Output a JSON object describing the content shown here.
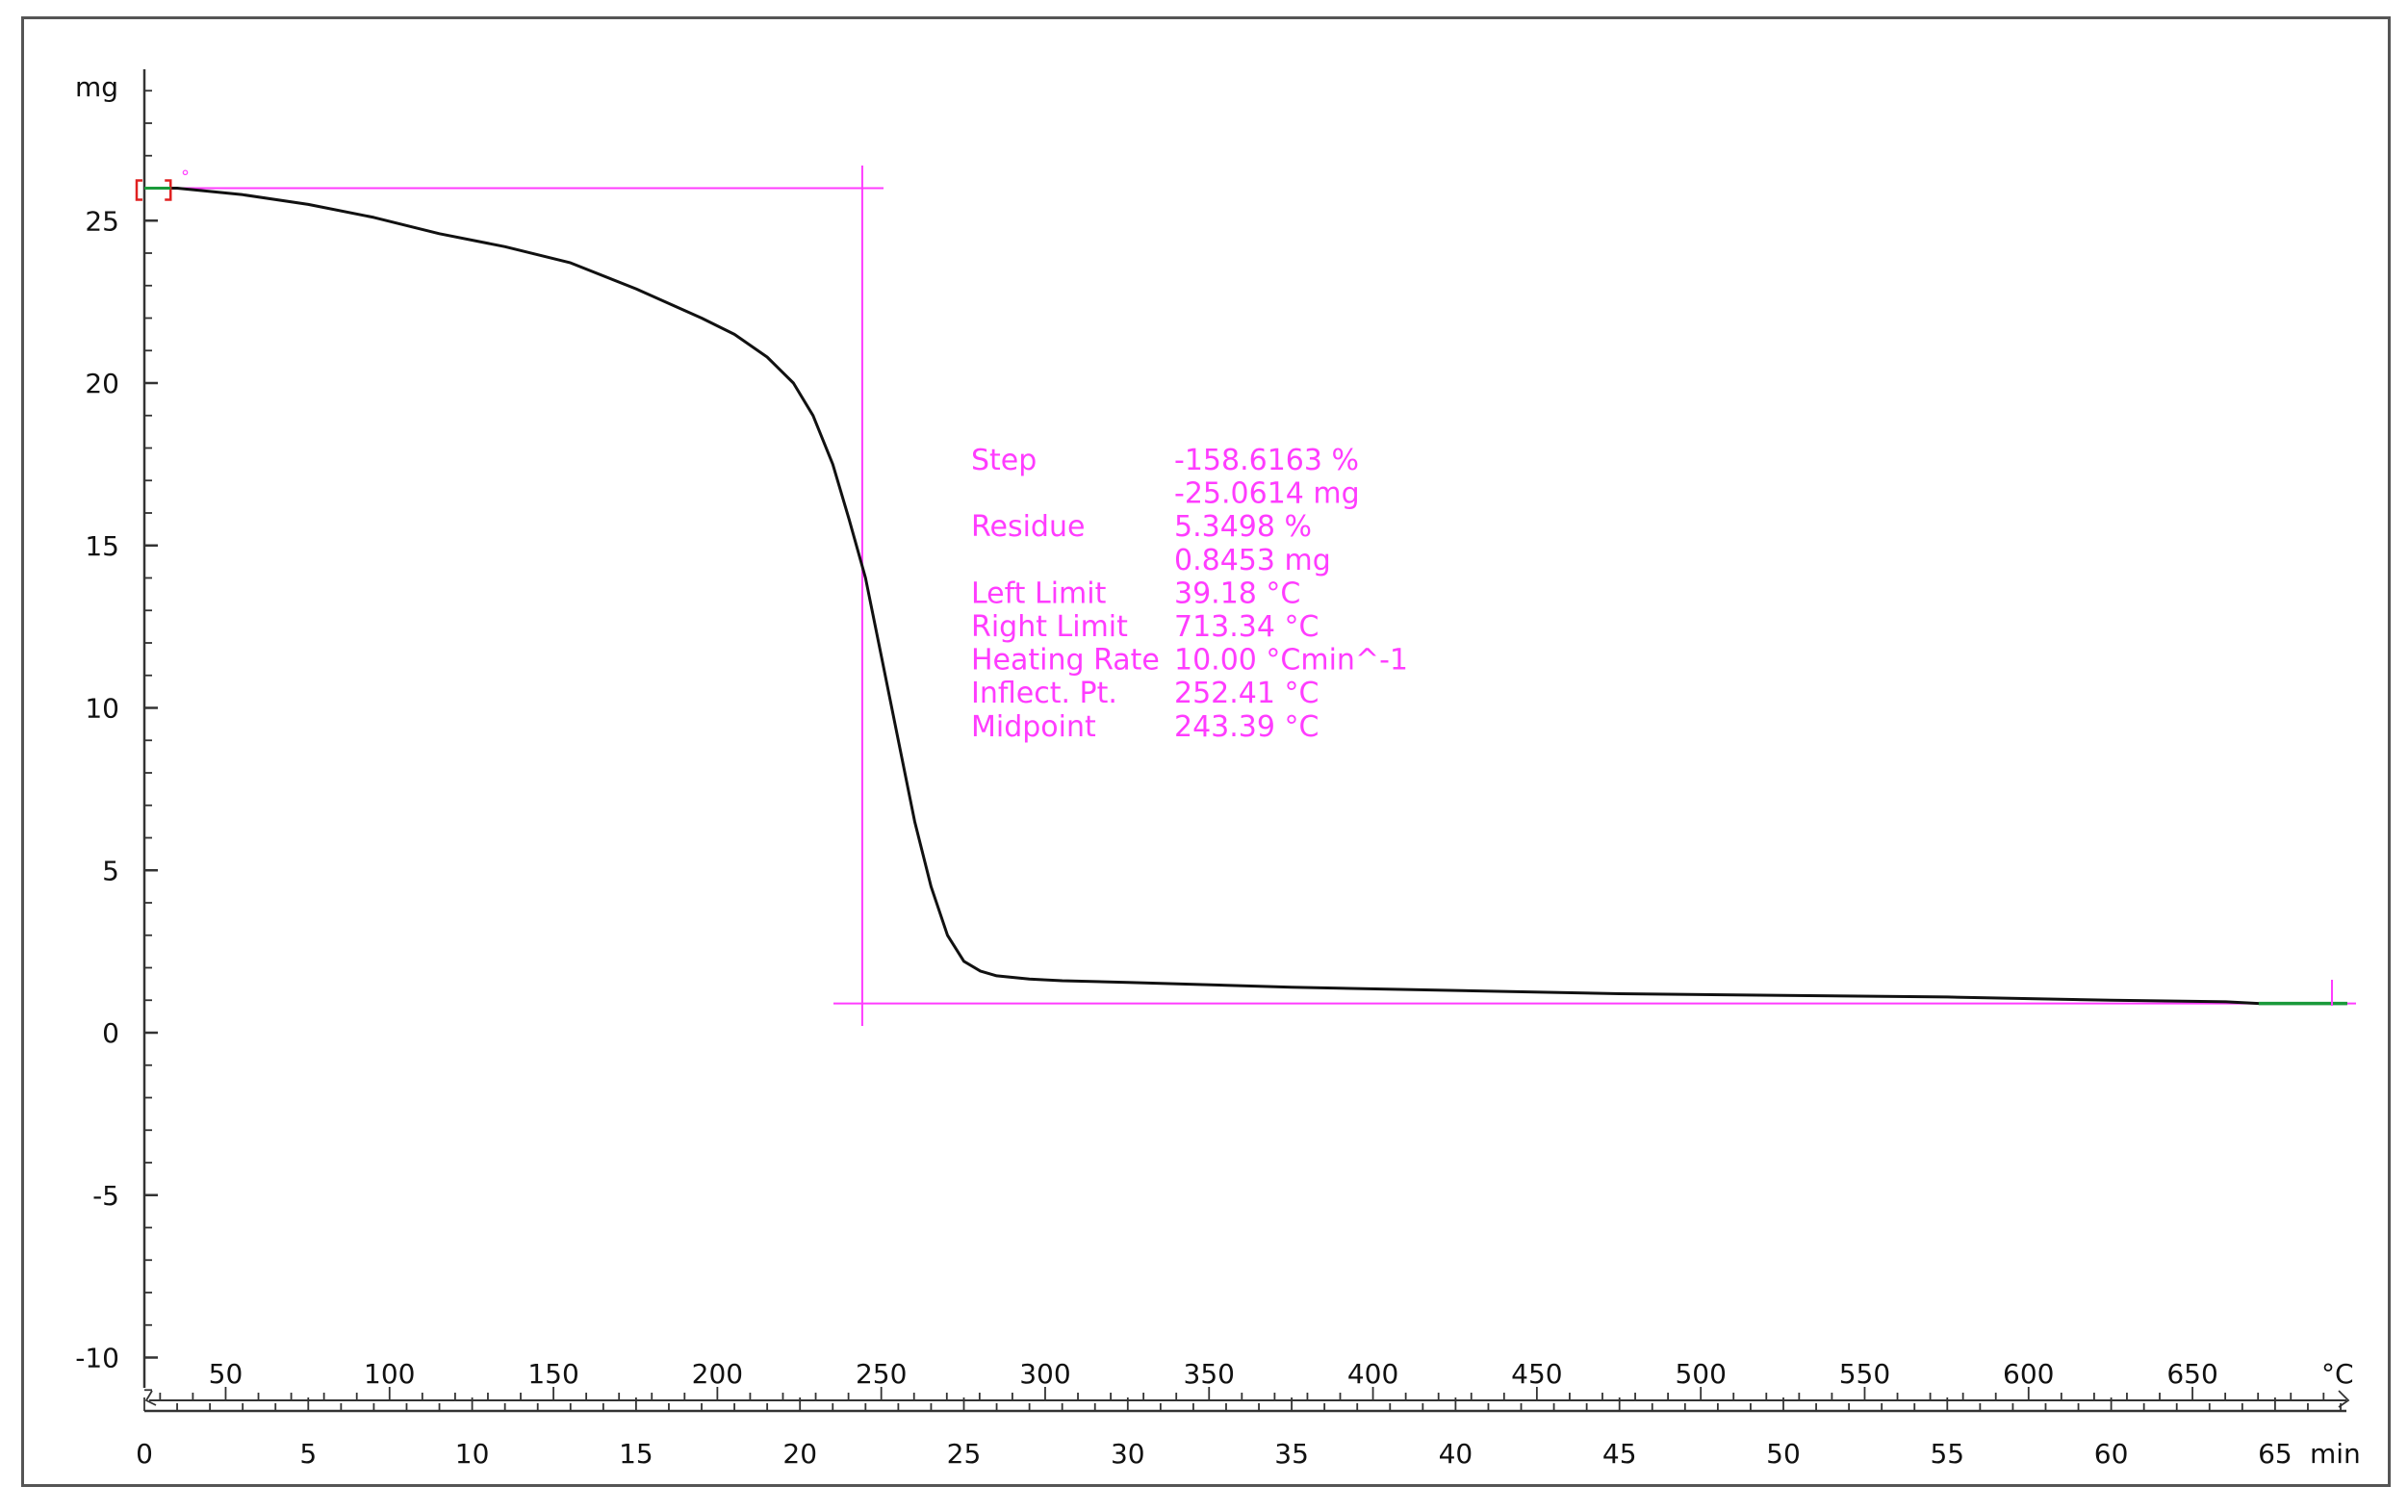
{
  "chart_data": {
    "type": "line",
    "title": "",
    "y_unit": "mg",
    "x_top_unit": "°C",
    "x_bottom_unit": "min",
    "ylim": [
      -11,
      29
    ],
    "x_min_lim": [
      0,
      67.4
    ],
    "y_ticks": [
      25,
      20,
      15,
      10,
      5,
      0,
      -5,
      -10
    ],
    "x_top_ticks": [
      50,
      100,
      150,
      200,
      250,
      300,
      350,
      400,
      450,
      500,
      550,
      600,
      650
    ],
    "x_bottom_ticks": [
      0,
      5,
      10,
      15,
      20,
      25,
      30,
      35,
      40,
      45,
      50,
      55,
      60,
      65
    ],
    "series": [
      {
        "color": "#111111",
        "x": [
          0.3,
          1,
          3,
          5,
          7,
          9,
          11,
          13,
          15,
          17,
          18,
          19,
          19.8,
          20.4,
          21,
          21.5,
          22,
          22.5,
          23,
          23.5,
          24,
          24.5,
          25,
          25.5,
          26,
          27,
          28,
          30,
          35,
          40,
          45,
          50,
          55,
          60,
          63.5,
          64.5,
          67.2
        ],
        "y": [
          26.0,
          26.0,
          25.8,
          25.5,
          25.1,
          24.6,
          24.2,
          23.7,
          22.9,
          22.0,
          21.5,
          20.8,
          20.0,
          19.0,
          17.5,
          15.8,
          14.0,
          11.5,
          9.0,
          6.5,
          4.5,
          3.0,
          2.2,
          1.9,
          1.75,
          1.65,
          1.6,
          1.55,
          1.4,
          1.3,
          1.2,
          1.15,
          1.1,
          1.0,
          0.95,
          0.9,
          0.9
        ]
      }
    ],
    "start_bracket_end_min": 0.8,
    "marked_segment_start_min": 64.5,
    "step_annotation": {
      "upper_level_mg": 26.0,
      "lower_level_mg": 0.9,
      "vertical_line_min": 21.9,
      "color": "#ff3cff",
      "rows": [
        {
          "label": "Step",
          "value": "-158.6163 %"
        },
        {
          "label": "",
          "value": "-25.0614 mg"
        },
        {
          "label": "Residue",
          "value": "5.3498 %"
        },
        {
          "label": "",
          "value": "0.8453 mg"
        },
        {
          "label": "Left Limit",
          "value": "39.18 °C"
        },
        {
          "label": "Right Limit",
          "value": "713.34 °C"
        },
        {
          "label": "Heating Rate",
          "value": "10.00 °Cmin^-1"
        },
        {
          "label": "Inflect. Pt.",
          "value": "252.41 °C"
        },
        {
          "label": "Midpoint",
          "value": "243.39 °C"
        }
      ]
    }
  }
}
